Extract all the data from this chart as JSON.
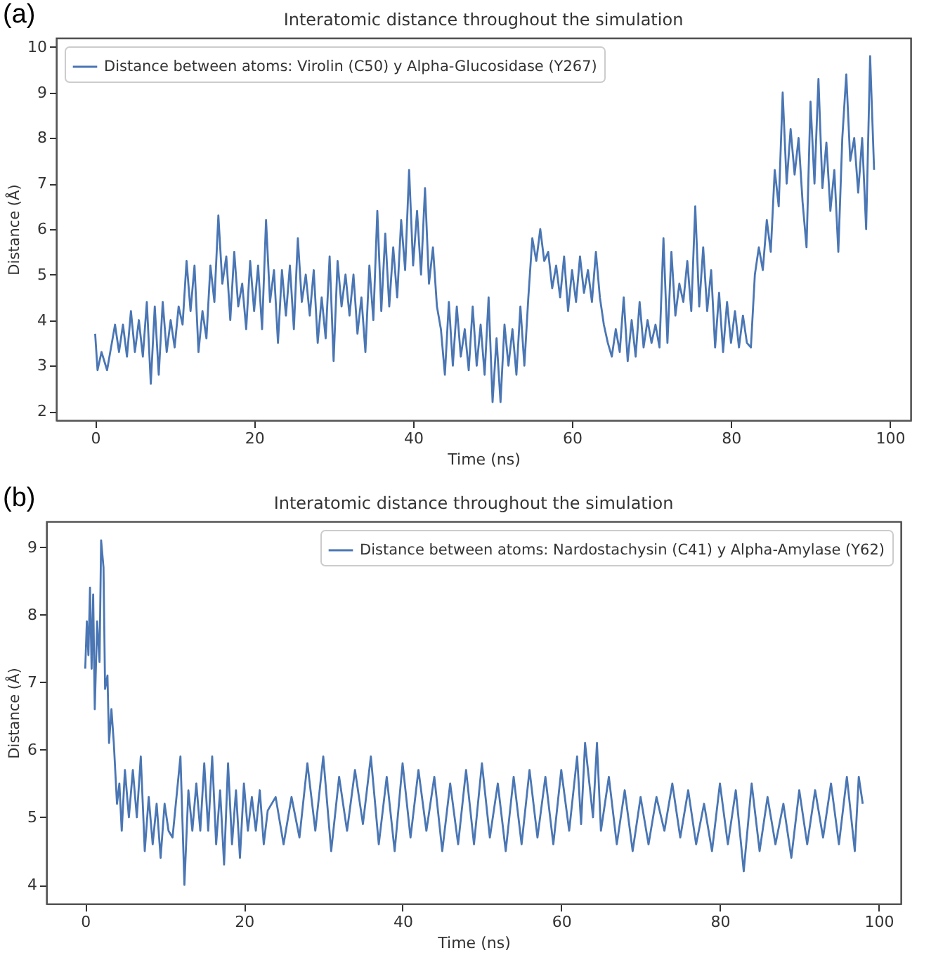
{
  "chart_data": [
    {
      "type": "line",
      "title": "Interatomic distance throughout the simulation",
      "xlabel": "Time (ns)",
      "ylabel": "Distance (Å)",
      "annotations": [
        "(a)"
      ],
      "legend": "top left",
      "xlim": [
        -4.9,
        102.6
      ],
      "ylim": [
        1.8,
        10.2
      ],
      "xticks": [
        0,
        20,
        40,
        60,
        80,
        100
      ],
      "yticks": [
        2,
        3,
        4,
        5,
        6,
        7,
        8,
        9,
        10
      ],
      "x": [
        0,
        0.3,
        0.8,
        1.5,
        2,
        2.5,
        3,
        3.5,
        4,
        4.5,
        5,
        5.5,
        6,
        6.5,
        7,
        7.5,
        8,
        8.5,
        9,
        9.5,
        10,
        10.5,
        11,
        11.5,
        12,
        12.5,
        13,
        13.5,
        14,
        14.5,
        15,
        15.5,
        16,
        16.5,
        17,
        17.5,
        18,
        18.5,
        19,
        19.5,
        20,
        20.5,
        21,
        21.5,
        22,
        22.5,
        23,
        23.5,
        24,
        24.5,
        25,
        25.5,
        26,
        26.5,
        27,
        27.5,
        28,
        28.5,
        29,
        29.5,
        30,
        30.5,
        31,
        31.5,
        32,
        32.5,
        33,
        33.5,
        34,
        34.5,
        35,
        35.5,
        36,
        36.5,
        37,
        37.5,
        38,
        38.5,
        39,
        39.5,
        40,
        40.5,
        41,
        41.5,
        42,
        42.5,
        43,
        43.5,
        44,
        44.5,
        45,
        45.5,
        46,
        46.5,
        47,
        47.5,
        48,
        48.5,
        49,
        49.5,
        50,
        50.5,
        51,
        51.5,
        52,
        52.5,
        53,
        53.5,
        54,
        54.5,
        55,
        55.5,
        56,
        56.5,
        57,
        57.5,
        58,
        58.5,
        59,
        59.5,
        60,
        60.5,
        61,
        61.5,
        62,
        62.5,
        63,
        63.5,
        64,
        64.5,
        65,
        65.5,
        66,
        66.5,
        67,
        67.5,
        68,
        68.5,
        69,
        69.5,
        70,
        70.5,
        71,
        71.5,
        72,
        72.5,
        73,
        73.5,
        74,
        74.5,
        75,
        75.5,
        76,
        76.5,
        77,
        77.5,
        78,
        78.5,
        79,
        79.5,
        80,
        80.5,
        81,
        81.5,
        82,
        82.5,
        83,
        83.5,
        84,
        84.5,
        85,
        85.5,
        86,
        86.5,
        87,
        87.5,
        88,
        88.5,
        89,
        89.5,
        90,
        90.5,
        91,
        91.5,
        92,
        92.5,
        93,
        93.5,
        94,
        94.5,
        95,
        95.5,
        96,
        96.5,
        97,
        97.5,
        98
      ],
      "series": [
        {
          "name": "Distance between atoms: Virolin (C50) y Alpha-Glucosidase (Y267)",
          "color": "#4a76b4",
          "values": [
            3.7,
            2.9,
            3.3,
            2.9,
            3.4,
            3.9,
            3.3,
            3.9,
            3.2,
            4.2,
            3.3,
            4.0,
            3.2,
            4.4,
            2.6,
            4.3,
            2.8,
            4.4,
            3.3,
            4.0,
            3.4,
            4.3,
            3.9,
            5.3,
            4.2,
            5.2,
            3.3,
            4.2,
            3.6,
            5.2,
            4.4,
            6.3,
            4.8,
            5.4,
            4.0,
            5.5,
            4.3,
            4.8,
            3.8,
            5.3,
            4.2,
            5.2,
            3.8,
            6.2,
            4.4,
            5.1,
            3.5,
            5.1,
            4.1,
            5.2,
            3.8,
            5.8,
            4.4,
            5.0,
            4.1,
            5.1,
            3.5,
            4.5,
            3.6,
            5.4,
            3.1,
            5.3,
            4.3,
            5.0,
            4.1,
            5.0,
            3.7,
            4.5,
            3.3,
            5.2,
            4.0,
            6.4,
            4.2,
            5.9,
            4.3,
            5.6,
            4.5,
            6.2,
            5.1,
            7.3,
            5.2,
            6.4,
            5.0,
            6.9,
            4.8,
            5.6,
            4.3,
            3.8,
            2.8,
            4.4,
            3.0,
            4.3,
            3.2,
            3.8,
            2.9,
            4.3,
            3.0,
            3.9,
            2.8,
            4.5,
            2.2,
            3.6,
            2.2,
            3.9,
            3.0,
            3.8,
            2.8,
            4.3,
            3.0,
            4.5,
            5.8,
            5.3,
            6.0,
            5.3,
            5.5,
            4.7,
            5.2,
            4.5,
            5.4,
            4.2,
            5.1,
            4.4,
            5.4,
            4.6,
            5.1,
            4.4,
            5.5,
            4.5,
            3.9,
            3.5,
            3.2,
            3.8,
            3.3,
            4.5,
            3.1,
            4.0,
            3.2,
            4.4,
            3.4,
            4.0,
            3.5,
            3.9,
            3.4,
            5.8,
            3.5,
            5.5,
            4.1,
            4.8,
            4.4,
            5.3,
            4.2,
            6.5,
            4.3,
            5.6,
            4.2,
            5.1,
            3.4,
            4.6,
            3.3,
            4.4,
            3.5,
            4.2,
            3.4,
            4.1,
            3.5,
            3.4,
            5.0,
            5.6,
            5.1,
            6.2,
            5.5,
            7.3,
            6.5,
            9.0,
            7.0,
            8.2,
            7.2,
            8.0,
            6.6,
            5.6,
            8.8,
            7.0,
            9.3,
            6.9,
            7.9,
            6.4,
            7.3,
            5.5,
            8.0,
            9.4,
            7.5,
            8.0,
            6.8,
            8.0,
            6.0,
            9.8,
            7.3
          ]
        }
      ]
    },
    {
      "type": "line",
      "title": "Interatomic distance throughout the simulation",
      "xlabel": "Time (ns)",
      "ylabel": "Distance (Å)",
      "annotations": [
        "(b)"
      ],
      "legend": "top right",
      "xlim": [
        -4.9,
        102.8
      ],
      "ylim": [
        3.72,
        9.38
      ],
      "xticks": [
        0,
        20,
        40,
        60,
        80,
        100
      ],
      "yticks": [
        4,
        5,
        6,
        7,
        8,
        9
      ],
      "x": [
        0,
        0.2,
        0.4,
        0.6,
        0.8,
        1,
        1.2,
        1.5,
        1.8,
        2,
        2.3,
        2.5,
        2.8,
        3,
        3.3,
        3.6,
        4,
        4.3,
        4.6,
        5,
        5.5,
        6,
        6.5,
        7,
        7.5,
        8,
        8.5,
        9,
        9.5,
        10,
        10.5,
        11,
        11.5,
        12,
        12.5,
        13,
        13.5,
        14,
        14.5,
        15,
        15.5,
        16,
        16.5,
        17,
        17.5,
        18,
        18.5,
        19,
        19.5,
        20,
        20.5,
        21,
        21.5,
        22,
        22.5,
        23,
        24,
        25,
        26,
        27,
        28,
        29,
        30,
        31,
        32,
        33,
        34,
        35,
        36,
        37,
        38,
        39,
        40,
        41,
        42,
        43,
        44,
        45,
        46,
        47,
        48,
        49,
        50,
        51,
        52,
        53,
        54,
        55,
        56,
        57,
        58,
        59,
        60,
        61,
        62,
        62.5,
        63,
        64,
        64.5,
        65,
        66,
        67,
        68,
        69,
        70,
        71,
        72,
        73,
        74,
        75,
        76,
        77,
        78,
        79,
        80,
        81,
        82,
        83,
        84,
        85,
        86,
        87,
        88,
        89,
        90,
        91,
        92,
        93,
        94,
        95,
        96,
        97,
        97.5,
        98
      ],
      "series": [
        {
          "name": "Distance between atoms: Nardostachysin (C41) y Alpha-Amylase (Y62)",
          "color": "#4a76b4",
          "values": [
            7.2,
            7.9,
            7.4,
            8.4,
            7.2,
            8.3,
            6.6,
            7.9,
            7.3,
            9.1,
            8.7,
            6.9,
            7.1,
            6.1,
            6.6,
            6.1,
            5.2,
            5.5,
            4.8,
            5.7,
            5.0,
            5.7,
            5.0,
            5.9,
            4.5,
            5.3,
            4.6,
            5.2,
            4.4,
            5.2,
            4.8,
            4.7,
            5.3,
            5.9,
            4.0,
            5.4,
            4.8,
            5.5,
            4.8,
            5.8,
            4.8,
            5.9,
            4.6,
            5.4,
            4.3,
            5.8,
            4.6,
            5.4,
            4.4,
            5.5,
            4.8,
            5.3,
            4.8,
            5.4,
            4.6,
            5.1,
            5.3,
            4.6,
            5.3,
            4.7,
            5.8,
            4.8,
            5.9,
            4.5,
            5.6,
            4.8,
            5.7,
            4.9,
            5.9,
            4.6,
            5.6,
            4.5,
            5.8,
            4.7,
            5.7,
            4.8,
            5.6,
            4.5,
            5.5,
            4.6,
            5.7,
            4.6,
            5.8,
            4.7,
            5.5,
            4.5,
            5.6,
            4.6,
            5.7,
            4.7,
            5.6,
            4.6,
            5.7,
            4.8,
            5.9,
            4.9,
            6.1,
            5.0,
            6.1,
            4.8,
            5.6,
            4.6,
            5.4,
            4.5,
            5.3,
            4.6,
            5.3,
            4.8,
            5.5,
            4.7,
            5.4,
            4.6,
            5.2,
            4.5,
            5.5,
            4.6,
            5.4,
            4.2,
            5.5,
            4.5,
            5.3,
            4.6,
            5.2,
            4.4,
            5.4,
            4.6,
            5.4,
            4.7,
            5.5,
            4.6,
            5.6,
            4.5,
            5.6,
            5.2
          ]
        }
      ]
    }
  ]
}
